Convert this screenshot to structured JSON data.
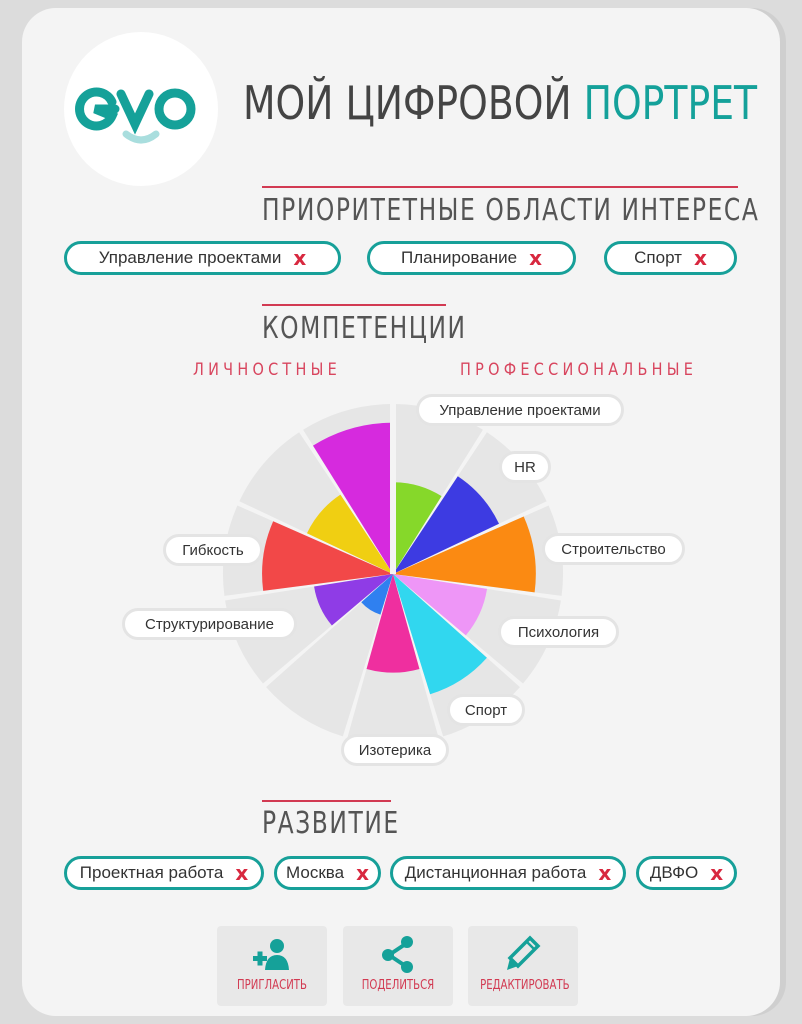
{
  "header": {
    "logo_text": "evo",
    "title_main": "МОЙ ЦИФРОВОЙ",
    "title_accent": "ПОРТРЕТ"
  },
  "interests": {
    "title": "ПРИОРИТЕТНЫЕ ОБЛАСТИ ИНТЕРЕСА",
    "remove_glyph": "x",
    "items": [
      "Управление проектами",
      "Планирование",
      "Спорт"
    ]
  },
  "competencies": {
    "title": "КОМПЕТЕНЦИИ",
    "personal_label": "ЛИЧНОСТНЫЕ",
    "professional_label": "ПРОФЕССИОНАЛЬНЫЕ"
  },
  "chart_data": {
    "type": "polar-area",
    "max": 1.0,
    "series": [
      {
        "label": "Управление проектами",
        "value": 0.54,
        "color": "#86d82a",
        "group": "professional"
      },
      {
        "label": "HR",
        "value": 0.69,
        "color": "#3d3be2",
        "group": "professional"
      },
      {
        "label": "Строительство",
        "value": 0.84,
        "color": "#fb8a12",
        "group": "professional"
      },
      {
        "label": "Психология",
        "value": 0.56,
        "color": "#ee96f7",
        "group": "professional"
      },
      {
        "label": "Спорт",
        "value": 0.74,
        "color": "#31d7ef",
        "group": "professional"
      },
      {
        "label": "Изотерика",
        "value": 0.58,
        "color": "#ef2f9f",
        "group": "professional"
      },
      {
        "label": "",
        "value": 0.25,
        "color": "#2f80f0",
        "group": "personal"
      },
      {
        "label": "Структурирование",
        "value": 0.47,
        "color": "#8f3ce6",
        "group": "personal"
      },
      {
        "label": "Гибкость",
        "value": 0.77,
        "color": "#f24848",
        "group": "personal"
      },
      {
        "label": "",
        "value": 0.56,
        "color": "#f0cf12",
        "group": "personal"
      },
      {
        "label": "",
        "value": 0.89,
        "color": "#d62ade",
        "group": "personal"
      }
    ]
  },
  "development": {
    "title": "РАЗВИТИЕ",
    "remove_glyph": "x",
    "items": [
      "Проектная работа",
      "Москва",
      "Дистанционная работа",
      "ДВФО"
    ]
  },
  "actions": {
    "invite_label": "ПРИГЛАСИТЬ",
    "share_label": "ПОДЕЛИТЬСЯ",
    "edit_label": "РЕДАКТИРОВАТЬ"
  },
  "colors": {
    "accent": "#14a19a",
    "rule": "#d23a52",
    "remove": "#d8283f"
  }
}
